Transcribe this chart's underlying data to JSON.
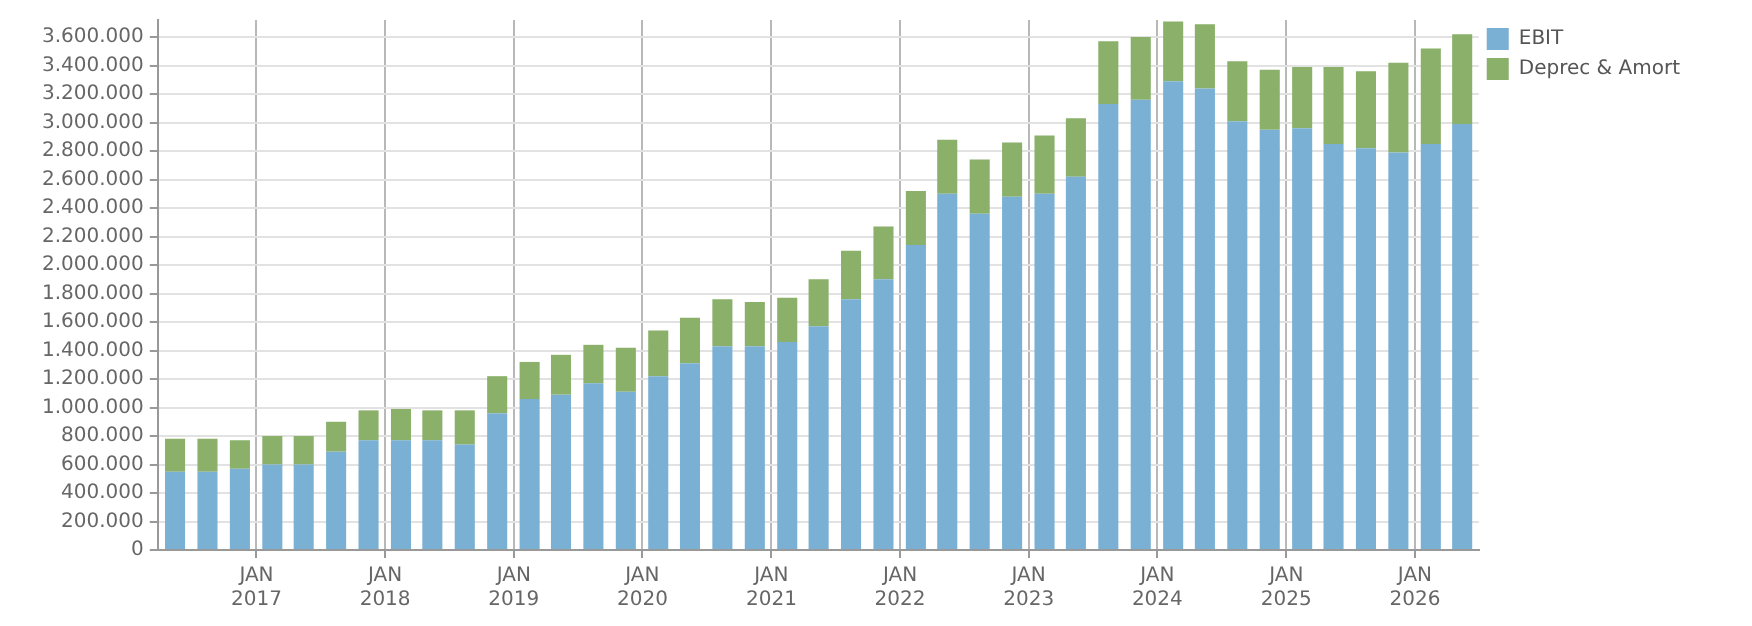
{
  "chart_data": {
    "type": "bar",
    "stacked": true,
    "x": [
      "2016-05-15",
      "2016-08-15",
      "2016-11-15",
      "2017-02-15",
      "2017-05-15",
      "2017-08-15",
      "2017-11-15",
      "2018-02-15",
      "2018-05-15",
      "2018-08-15",
      "2018-11-15",
      "2019-02-15",
      "2019-05-15",
      "2019-08-15",
      "2019-11-15",
      "2020-02-15",
      "2020-05-15",
      "2020-08-15",
      "2020-11-15",
      "2021-02-15",
      "2021-05-15",
      "2021-08-15",
      "2021-11-15",
      "2022-02-15",
      "2022-05-15",
      "2022-08-15",
      "2022-11-15",
      "2023-02-15",
      "2023-05-15",
      "2023-08-15",
      "2023-11-15",
      "2024-02-15",
      "2024-05-15",
      "2024-08-15",
      "2024-11-15",
      "2025-02-15",
      "2025-05-15",
      "2025-08-15",
      "2025-11-15",
      "2026-02-15",
      "2026-05-15"
    ],
    "series": [
      {
        "name": "EBIT",
        "color": "#7ab0d3",
        "values": [
          550000,
          550000,
          570000,
          600000,
          600000,
          690000,
          770000,
          770000,
          770000,
          740000,
          960000,
          1060000,
          1090000,
          1170000,
          1110000,
          1220000,
          1310000,
          1430000,
          1430000,
          1460000,
          1570000,
          1760000,
          1900000,
          2140000,
          2500000,
          2360000,
          2480000,
          2500000,
          2620000,
          3130000,
          3160000,
          3290000,
          3240000,
          3010000,
          2950000,
          2960000,
          2850000,
          2820000,
          2790000,
          2850000,
          2990000
        ]
      },
      {
        "name": "Deprec & Amort",
        "color": "#8ab06a",
        "values": [
          230000,
          230000,
          200000,
          200000,
          200000,
          210000,
          210000,
          220000,
          210000,
          240000,
          260000,
          260000,
          280000,
          270000,
          310000,
          320000,
          320000,
          330000,
          310000,
          310000,
          330000,
          340000,
          370000,
          380000,
          380000,
          380000,
          380000,
          410000,
          410000,
          440000,
          440000,
          420000,
          450000,
          420000,
          420000,
          430000,
          540000,
          540000,
          630000,
          670000,
          630000
        ]
      }
    ],
    "xlim": [
      "2016-03-27",
      "2026-07-01"
    ],
    "xticks": [
      {
        "value": "2017-01",
        "label": "JAN 2017"
      },
      {
        "value": "2018-01",
        "label": "JAN 2018"
      },
      {
        "value": "2019-01",
        "label": "JAN 2019"
      },
      {
        "value": "2020-01",
        "label": "JAN 2020"
      },
      {
        "value": "2021-01",
        "label": "JAN 2021"
      },
      {
        "value": "2022-01",
        "label": "JAN 2022"
      },
      {
        "value": "2023-01",
        "label": "JAN 2023"
      },
      {
        "value": "2024-01",
        "label": "JAN 2024"
      },
      {
        "value": "2025-01",
        "label": "JAN 2025"
      },
      {
        "value": "2026-01",
        "label": "JAN 2026"
      }
    ],
    "ylim": [
      0,
      3720000
    ],
    "yticks": [
      {
        "value": 0,
        "label": "0"
      },
      {
        "value": 200000,
        "label": "200.000"
      },
      {
        "value": 400000,
        "label": "400.000"
      },
      {
        "value": 600000,
        "label": "600.000"
      },
      {
        "value": 800000,
        "label": "800.000"
      },
      {
        "value": 1000000,
        "label": "1.000.000"
      },
      {
        "value": 1200000,
        "label": "1.200.000"
      },
      {
        "value": 1400000,
        "label": "1.400.000"
      },
      {
        "value": 1600000,
        "label": "1.600.000"
      },
      {
        "value": 1800000,
        "label": "1.800.000"
      },
      {
        "value": 2000000,
        "label": "2.000.000"
      },
      {
        "value": 2200000,
        "label": "2.200.000"
      },
      {
        "value": 2400000,
        "label": "2.400.000"
      },
      {
        "value": 2600000,
        "label": "2.600.000"
      },
      {
        "value": 2800000,
        "label": "2.800.000"
      },
      {
        "value": 3000000,
        "label": "3.000.000"
      },
      {
        "value": 3200000,
        "label": "3.200.000"
      },
      {
        "value": 3400000,
        "label": "3.400.000"
      },
      {
        "value": 3600000,
        "label": "3.600.000"
      }
    ],
    "grid": true,
    "legend": "right"
  }
}
